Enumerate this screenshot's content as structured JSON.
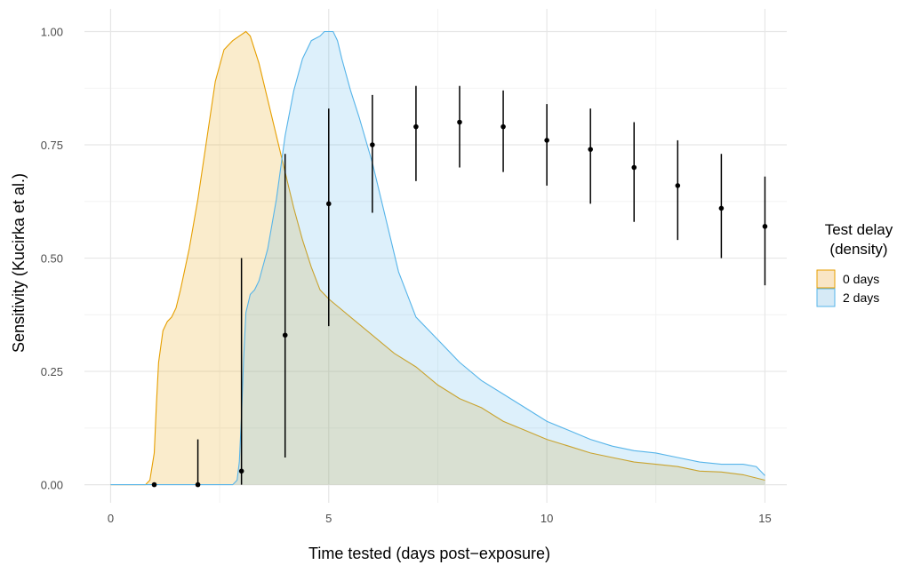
{
  "chart_data": {
    "type": "area",
    "xlabel": "Time tested (days post−exposure)",
    "ylabel": "Sensitivity (Kucirka et al.)",
    "xlim": [
      -0.6,
      15.5
    ],
    "ylim": [
      -0.04,
      1.05
    ],
    "x_ticks": [
      0,
      5,
      10,
      15
    ],
    "x_tick_labels": [
      "0",
      "5",
      "10",
      "15"
    ],
    "y_ticks": [
      0,
      0.25,
      0.5,
      0.75,
      1.0
    ],
    "y_tick_labels": [
      "0.00",
      "0.25",
      "0.50",
      "0.75",
      "1.00"
    ],
    "grid": true,
    "legend": {
      "title": "Test delay\n(density)",
      "title_lines": [
        "Test delay",
        "(density)"
      ],
      "position": "right",
      "entries": [
        {
          "label": "0 days",
          "fill": "#F9E5C5",
          "stroke": "#E69F00"
        },
        {
          "label": "2 days",
          "fill": "#D6EAF6",
          "stroke": "#56B4E9"
        }
      ]
    },
    "series": [
      {
        "name": "0 days",
        "kind": "density",
        "fill": "#E69F00",
        "stroke": "#E69F00",
        "fill_opacity": 0.2,
        "x": [
          0,
          0.8,
          0.9,
          1.0,
          1.05,
          1.1,
          1.2,
          1.3,
          1.4,
          1.5,
          1.6,
          1.8,
          2.0,
          2.2,
          2.4,
          2.6,
          2.8,
          2.95,
          3.1,
          3.2,
          3.4,
          3.6,
          3.8,
          4.0,
          4.2,
          4.4,
          4.6,
          4.8,
          5.0,
          5.5,
          6.0,
          6.5,
          7.0,
          7.5,
          8.0,
          8.5,
          9.0,
          9.5,
          10.0,
          10.5,
          11.0,
          11.5,
          12.0,
          12.5,
          13.0,
          13.5,
          14.0,
          14.5,
          15.0
        ],
        "y": [
          0,
          0,
          0.01,
          0.07,
          0.18,
          0.27,
          0.34,
          0.36,
          0.37,
          0.39,
          0.43,
          0.52,
          0.63,
          0.76,
          0.89,
          0.96,
          0.98,
          0.99,
          1.0,
          0.99,
          0.93,
          0.85,
          0.77,
          0.69,
          0.61,
          0.54,
          0.48,
          0.43,
          0.41,
          0.37,
          0.33,
          0.29,
          0.26,
          0.22,
          0.19,
          0.17,
          0.14,
          0.12,
          0.1,
          0.085,
          0.07,
          0.06,
          0.05,
          0.045,
          0.04,
          0.03,
          0.028,
          0.022,
          0.01
        ]
      },
      {
        "name": "2 days",
        "kind": "density",
        "fill": "#56B4E9",
        "stroke": "#56B4E9",
        "fill_opacity": 0.2,
        "x": [
          0,
          2.8,
          2.9,
          2.95,
          3.0,
          3.05,
          3.1,
          3.2,
          3.3,
          3.4,
          3.6,
          3.8,
          4.0,
          4.2,
          4.4,
          4.6,
          4.8,
          4.9,
          5.0,
          5.1,
          5.2,
          5.3,
          5.5,
          5.7,
          6.0,
          6.3,
          6.6,
          7.0,
          7.5,
          8.0,
          8.5,
          9.0,
          9.5,
          10.0,
          10.5,
          11.0,
          11.5,
          12.0,
          12.5,
          13.0,
          13.5,
          14.0,
          14.5,
          14.8,
          15.0
        ],
        "y": [
          0,
          0,
          0.01,
          0.05,
          0.15,
          0.28,
          0.38,
          0.42,
          0.43,
          0.45,
          0.52,
          0.63,
          0.77,
          0.87,
          0.94,
          0.98,
          0.99,
          1.0,
          1.0,
          1.0,
          0.98,
          0.94,
          0.87,
          0.81,
          0.71,
          0.59,
          0.47,
          0.37,
          0.32,
          0.27,
          0.23,
          0.2,
          0.17,
          0.14,
          0.12,
          0.1,
          0.085,
          0.075,
          0.07,
          0.06,
          0.05,
          0.045,
          0.045,
          0.04,
          0.02
        ]
      },
      {
        "name": "",
        "kind": "pointrange",
        "color": "#000000",
        "x": [
          1,
          2,
          3,
          4,
          5,
          6,
          7,
          8,
          9,
          10,
          11,
          12,
          13,
          14,
          15
        ],
        "y": [
          0.0,
          0.0,
          0.03,
          0.33,
          0.62,
          0.75,
          0.79,
          0.8,
          0.79,
          0.76,
          0.74,
          0.7,
          0.66,
          0.61,
          0.57
        ],
        "ymin": [
          0.0,
          0.0,
          0.0,
          0.06,
          0.35,
          0.6,
          0.67,
          0.7,
          0.69,
          0.66,
          0.62,
          0.58,
          0.54,
          0.5,
          0.44
        ],
        "ymax": [
          0.0,
          0.1,
          0.5,
          0.73,
          0.83,
          0.86,
          0.88,
          0.88,
          0.87,
          0.84,
          0.83,
          0.8,
          0.76,
          0.73,
          0.68
        ]
      }
    ]
  }
}
